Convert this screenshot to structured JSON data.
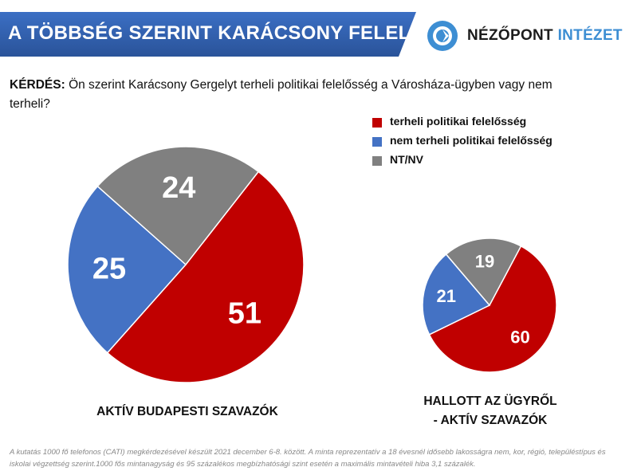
{
  "header": {
    "title": "A TÖBBSÉG SZERINT KARÁCSONY FELELŐS",
    "banner_color": "#3566b8",
    "logo_icon": "nezopont-logo-icon",
    "logo_name": "NÉZŐPONT",
    "logo_institute": "INTÉZET"
  },
  "question": {
    "label": "KÉRDÉS:",
    "text": " Ön szerint Karácsony Gergelyt terheli politikai felelősség a Városháza-ügyben vagy nem terheli?"
  },
  "legend": [
    {
      "label": "terheli politikai felelősség",
      "color": "#c00000"
    },
    {
      "label": "nem terheli politikai felelősség",
      "color": "#4472c4"
    },
    {
      "label": "NT/NV",
      "color": "#808080"
    }
  ],
  "chart_data": [
    {
      "type": "pie",
      "title": "AKTÍV BUDAPESTI SZAVAZÓK",
      "slices": [
        {
          "label": "terheli politikai felelősség",
          "value": 51,
          "color": "#c00000"
        },
        {
          "label": "nem terheli politikai felelősség",
          "value": 25,
          "color": "#4472c4"
        },
        {
          "label": "NT/NV",
          "value": 24,
          "color": "#808080"
        }
      ]
    },
    {
      "type": "pie",
      "title_line1": "HALLOTT AZ ÜGYRŐL",
      "title_line2": "- AKTÍV SZAVAZÓK",
      "slices": [
        {
          "label": "terheli politikai felelősség",
          "value": 60,
          "color": "#c00000"
        },
        {
          "label": "nem terheli politikai felelősség",
          "value": 21,
          "color": "#4472c4"
        },
        {
          "label": "NT/NV",
          "value": 19,
          "color": "#808080"
        }
      ]
    }
  ],
  "footnote": "A kutatás 1000 fő telefonos (CATI) megkérdezésével készült 2021 december 6-8. között. A minta reprezentatív a 18 évesnél idősebb lakosságra nem, kor, régió, településtípus és iskolai végzettség szerint.1000 fős mintanagyság és 95 százalékos megbízhatósági szint esetén a maximális mintavételi hiba 3,1 százalék."
}
